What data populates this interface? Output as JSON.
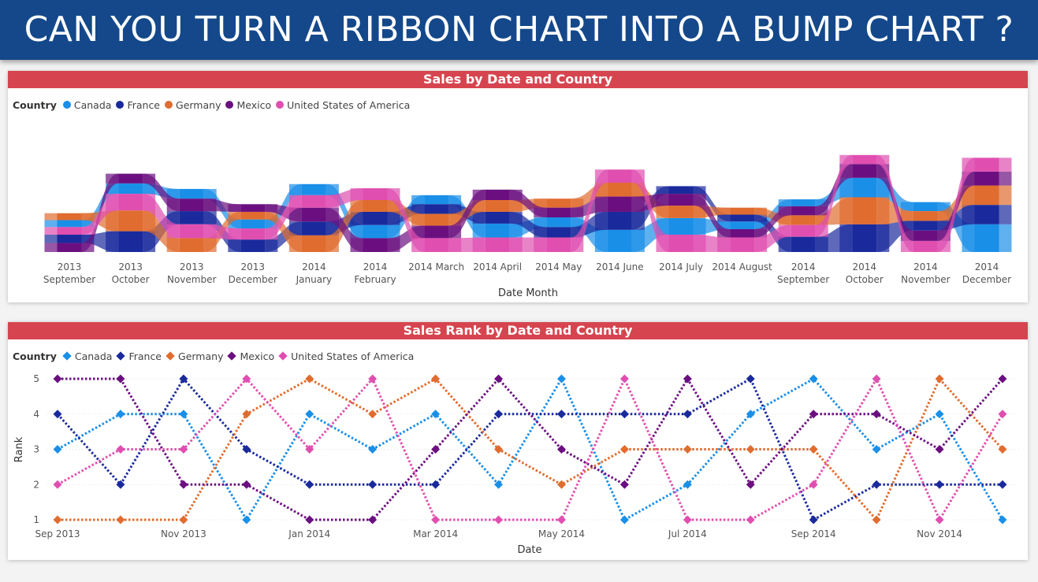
{
  "banner": {
    "title": "CAN YOU TURN A RIBBON CHART INTO A BUMP CHART ?"
  },
  "countries": [
    {
      "name": "Canada",
      "color": "#1a8fe8"
    },
    {
      "name": "France",
      "color": "#1a2a9c"
    },
    {
      "name": "Germany",
      "color": "#e06c2f"
    },
    {
      "name": "Mexico",
      "color": "#6b0f80"
    },
    {
      "name": "United States of America",
      "color": "#e04fb0"
    }
  ],
  "ribbon": {
    "title": "Sales by Date and Country",
    "legend_title": "Country",
    "xlabel": "Date Month"
  },
  "bump": {
    "title": "Sales Rank by Date and Country",
    "legend_title": "Country",
    "ylabel": "Rank",
    "xlabel": "Date"
  },
  "chart_data": [
    {
      "type": "ribbon",
      "title": "Sales by Date and Country",
      "xlabel": "Date Month",
      "legend_title": "Country",
      "legend_position": "top-left",
      "categories": [
        [
          "2013",
          "September"
        ],
        [
          "2013",
          "October"
        ],
        [
          "2013",
          "November"
        ],
        [
          "2013",
          "December"
        ],
        [
          "2014",
          "January"
        ],
        [
          "2014",
          "February"
        ],
        [
          "2014 March"
        ],
        [
          "2014 April"
        ],
        [
          "2014 May"
        ],
        [
          "2014 June"
        ],
        [
          "2014 July"
        ],
        [
          "2014 August"
        ],
        [
          "2014",
          "September"
        ],
        [
          "2014",
          "October"
        ],
        [
          "2014",
          "November"
        ],
        [
          "2014",
          "December"
        ]
      ],
      "series": [
        {
          "name": "Canada",
          "values": [
            10,
            15,
            14,
            13,
            16,
            19,
            13,
            20,
            14,
            32,
            24,
            11,
            10,
            28,
            13,
            40
          ]
        },
        {
          "name": "France",
          "values": [
            12,
            30,
            19,
            18,
            20,
            19,
            14,
            17,
            15,
            26,
            11,
            10,
            22,
            40,
            14,
            28
          ]
        },
        {
          "name": "Germany",
          "values": [
            10,
            30,
            20,
            11,
            24,
            17,
            17,
            17,
            13,
            20,
            18,
            10,
            14,
            39,
            14,
            28
          ]
        },
        {
          "name": "Mexico",
          "values": [
            13,
            14,
            18,
            11,
            20,
            20,
            18,
            15,
            14,
            22,
            17,
            12,
            13,
            20,
            15,
            20
          ]
        },
        {
          "name": "United States of America",
          "values": [
            11,
            24,
            20,
            16,
            18,
            17,
            20,
            21,
            21,
            19,
            25,
            21,
            17,
            13,
            16,
            20
          ]
        }
      ]
    },
    {
      "type": "line",
      "subtype": "bump",
      "title": "Sales Rank by Date and Country",
      "xlabel": "Date",
      "ylabel": "Rank",
      "ylim": [
        1,
        5
      ],
      "yticks": [
        1,
        2,
        3,
        4,
        5
      ],
      "grid": true,
      "legend_title": "Country",
      "legend_position": "top-left",
      "x": [
        "Sep 2013",
        "Oct 2013",
        "Nov 2013",
        "Dec 2013",
        "Jan 2014",
        "Feb 2014",
        "Mar 2014",
        "Apr 2014",
        "May 2014",
        "Jun 2014",
        "Jul 2014",
        "Aug 2014",
        "Sep 2014",
        "Oct 2014",
        "Nov 2014",
        "Dec 2014"
      ],
      "xtick_labels": [
        "Sep 2013",
        "Nov 2013",
        "Jan 2014",
        "Mar 2014",
        "May 2014",
        "Jul 2014",
        "Sep 2014",
        "Nov 2014"
      ],
      "xtick_index": [
        0,
        2,
        4,
        6,
        8,
        10,
        12,
        14
      ],
      "series": [
        {
          "name": "Canada",
          "values": [
            3,
            4,
            4,
            1,
            4,
            3,
            4,
            2,
            5,
            1,
            2,
            4,
            5,
            3,
            4,
            1
          ]
        },
        {
          "name": "France",
          "values": [
            4,
            2,
            5,
            3,
            2,
            2,
            2,
            4,
            4,
            4,
            4,
            5,
            1,
            2,
            2,
            2
          ]
        },
        {
          "name": "Germany",
          "values": [
            1,
            1,
            1,
            4,
            5,
            4,
            5,
            3,
            2,
            3,
            3,
            3,
            3,
            1,
            5,
            3
          ]
        },
        {
          "name": "Mexico",
          "values": [
            5,
            5,
            2,
            2,
            1,
            1,
            3,
            5,
            3,
            2,
            5,
            2,
            4,
            4,
            3,
            5
          ]
        },
        {
          "name": "United States of America",
          "values": [
            2,
            3,
            3,
            5,
            3,
            5,
            1,
            1,
            1,
            5,
            1,
            1,
            2,
            5,
            1,
            4
          ]
        }
      ]
    }
  ]
}
